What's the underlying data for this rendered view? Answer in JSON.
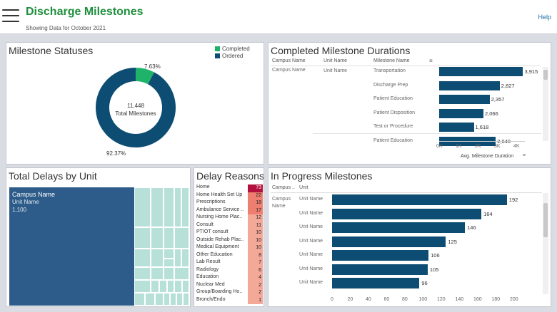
{
  "header": {
    "title": "Discharge Milestones",
    "subtitle": "Showing Data for October 2021",
    "help": "Help"
  },
  "statuses": {
    "title": "Milestone Statuses",
    "legend": [
      "Completed",
      "Ordered"
    ],
    "center_value": "11,448",
    "center_label": "Total Milestones",
    "completed_pct": "7.63%",
    "ordered_pct": "92.37%",
    "colors": {
      "completed": "#1fb36a",
      "ordered": "#0d4d73"
    },
    "chart_data": {
      "type": "pie",
      "categories": [
        "Completed",
        "Ordered"
      ],
      "values": [
        7.63,
        92.37
      ]
    }
  },
  "durations": {
    "title": "Completed Milestone Durations",
    "headers": [
      "Campus Name",
      "Unit Name",
      "Milestone Name"
    ],
    "campus": "Campus Name",
    "unit": "Unit Name",
    "axis_title": "Avg. Milestone Duration",
    "ticks": [
      "0K",
      "1K",
      "2K",
      "3K",
      "4K"
    ],
    "chart_data": {
      "type": "bar",
      "categories": [
        "Transportation",
        "Discharge Prep",
        "Patient Education",
        "Patient Disposition",
        "Test or Procedure",
        "Patient Education"
      ],
      "values": [
        3915,
        2827,
        2357,
        2066,
        1618,
        2640
      ],
      "value_labels": [
        "3,915",
        "2,827",
        "2,357",
        "2,066",
        "1,618",
        "2,640"
      ],
      "xlabel": "Avg. Milestone Duration",
      "xlim": [
        0,
        4000
      ]
    }
  },
  "delays_unit": {
    "title": "Total Delays by Unit",
    "campus": "Campus Name",
    "unit": "Unit Name",
    "value": "1,100"
  },
  "delay_reasons": {
    "title": "Delay Reasons",
    "chart_data": {
      "type": "table",
      "categories": [
        "Home",
        "Home Health Set Up",
        "Prescriptions",
        "Ambulance Service ..",
        "Nursing Home Plac..",
        "Consult",
        "PT/OT consult",
        "Outside Rehab Plac..",
        "Medical Equipment",
        "Other Education",
        "Lab Result",
        "Radiology",
        "Education",
        "Nuclear Med",
        "Group/Boarding Ho..",
        "Bronch/Endo"
      ],
      "values": [
        73,
        22,
        18,
        17,
        12,
        11,
        10,
        10,
        10,
        8,
        7,
        6,
        4,
        2,
        2,
        1
      ]
    }
  },
  "in_progress": {
    "title": "In Progress Milestones",
    "headers": [
      "Campus ..",
      "Unit"
    ],
    "campus": "Campus Name",
    "ticks": [
      "0",
      "20",
      "40",
      "60",
      "80",
      "100",
      "120",
      "140",
      "160",
      "180",
      "200"
    ],
    "chart_data": {
      "type": "bar",
      "categories": [
        "Unit Name",
        "Unit Name",
        "Unit Name",
        "Unit Name",
        "Unit Name",
        "Unit Name",
        "Unit Name"
      ],
      "values": [
        192,
        164,
        146,
        125,
        106,
        105,
        96
      ],
      "xlim": [
        0,
        200
      ]
    }
  }
}
